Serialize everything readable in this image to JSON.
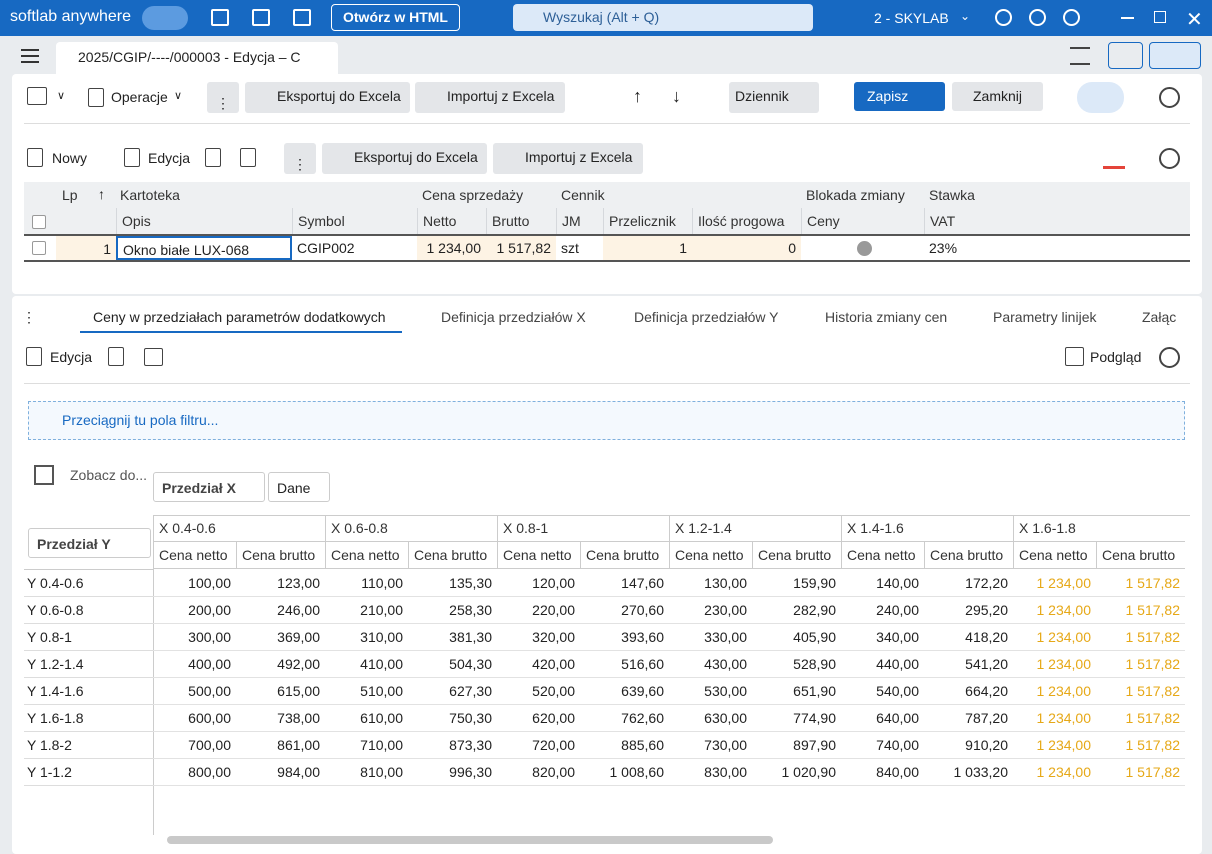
{
  "app": {
    "brand": "softlab anywhere",
    "open_html": "Otwórz w HTML",
    "search": "Wyszukaj (Alt + Q)",
    "company": "2 - SKYLAB"
  },
  "document_tab": "2025/CGIP/----/000003 - Edycja – C",
  "toolbar": {
    "operations": "Operacje",
    "export": "Eksportuj do Excela",
    "import": "Importuj z Excela",
    "journal": "Dziennik",
    "save": "Zapisz",
    "close": "Zamknij"
  },
  "items_toolbar": {
    "new": "Nowy",
    "edit": "Edycja",
    "export": "Eksportuj do Excela",
    "import": "Importuj z Excela"
  },
  "items_grid": {
    "group_headers": [
      "Lp",
      "Kartoteka",
      "Cena sprzedaży",
      "Cennik",
      "Blokada zmiany",
      "Stawka"
    ],
    "columns": [
      "Opis",
      "Symbol",
      "Netto",
      "Brutto",
      "JM",
      "Przelicznik",
      "Ilość progowa",
      "Ceny",
      "VAT"
    ],
    "rows": [
      [
        "1",
        "Okno białe LUX-068",
        "CGIP002",
        "1 234,00",
        "1 517,82",
        "szt",
        "1",
        "0",
        "23%"
      ]
    ]
  },
  "tabs": [
    "Ceny w przedziałach parametrów dodatkowych",
    "Definicja przedziałów X",
    "Definicja przedziałów Y",
    "Historia zmiany cen",
    "Parametry linijek",
    "Załąc"
  ],
  "detail_toolbar": {
    "edit": "Edycja",
    "preview": "Podgląd"
  },
  "filter_hint": "Przeciągnij tu pola filtru...",
  "pivot": {
    "see_more": "Zobacz do...",
    "column_field": "Przedział X",
    "data_field": "Dane",
    "row_field": "Przedział Y",
    "column_groups": [
      "X 0.4-0.6",
      "X 0.6-0.8",
      "X 0.8-1",
      "X 1.2-1.4",
      "X 1.4-1.6",
      "X 1.6-1.8"
    ],
    "measures": [
      "Cena netto",
      "Cena brutto"
    ],
    "rows": [
      {
        "label": "Y 0.4-0.6",
        "values": [
          "100,00",
          "123,00",
          "110,00",
          "135,30",
          "120,00",
          "147,60",
          "130,00",
          "159,90",
          "140,00",
          "172,20",
          "1 234,00",
          "1 517,82"
        ]
      },
      {
        "label": "Y 0.6-0.8",
        "values": [
          "200,00",
          "246,00",
          "210,00",
          "258,30",
          "220,00",
          "270,60",
          "230,00",
          "282,90",
          "240,00",
          "295,20",
          "1 234,00",
          "1 517,82"
        ]
      },
      {
        "label": "Y 0.8-1",
        "values": [
          "300,00",
          "369,00",
          "310,00",
          "381,30",
          "320,00",
          "393,60",
          "330,00",
          "405,90",
          "340,00",
          "418,20",
          "1 234,00",
          "1 517,82"
        ]
      },
      {
        "label": "Y 1.2-1.4",
        "values": [
          "400,00",
          "492,00",
          "410,00",
          "504,30",
          "420,00",
          "516,60",
          "430,00",
          "528,90",
          "440,00",
          "541,20",
          "1 234,00",
          "1 517,82"
        ]
      },
      {
        "label": "Y 1.4-1.6",
        "values": [
          "500,00",
          "615,00",
          "510,00",
          "627,30",
          "520,00",
          "639,60",
          "530,00",
          "651,90",
          "540,00",
          "664,20",
          "1 234,00",
          "1 517,82"
        ]
      },
      {
        "label": "Y 1.6-1.8",
        "values": [
          "600,00",
          "738,00",
          "610,00",
          "750,30",
          "620,00",
          "762,60",
          "630,00",
          "774,90",
          "640,00",
          "787,20",
          "1 234,00",
          "1 517,82"
        ]
      },
      {
        "label": "Y 1.8-2",
        "values": [
          "700,00",
          "861,00",
          "710,00",
          "873,30",
          "720,00",
          "885,60",
          "730,00",
          "897,90",
          "740,00",
          "910,20",
          "1 234,00",
          "1 517,82"
        ]
      },
      {
        "label": "Y 1-1.2",
        "values": [
          "800,00",
          "984,00",
          "810,00",
          "996,30",
          "820,00",
          "1 008,60",
          "830,00",
          "1 020,90",
          "840,00",
          "1 033,20",
          "1 234,00",
          "1 517,82"
        ]
      }
    ]
  }
}
